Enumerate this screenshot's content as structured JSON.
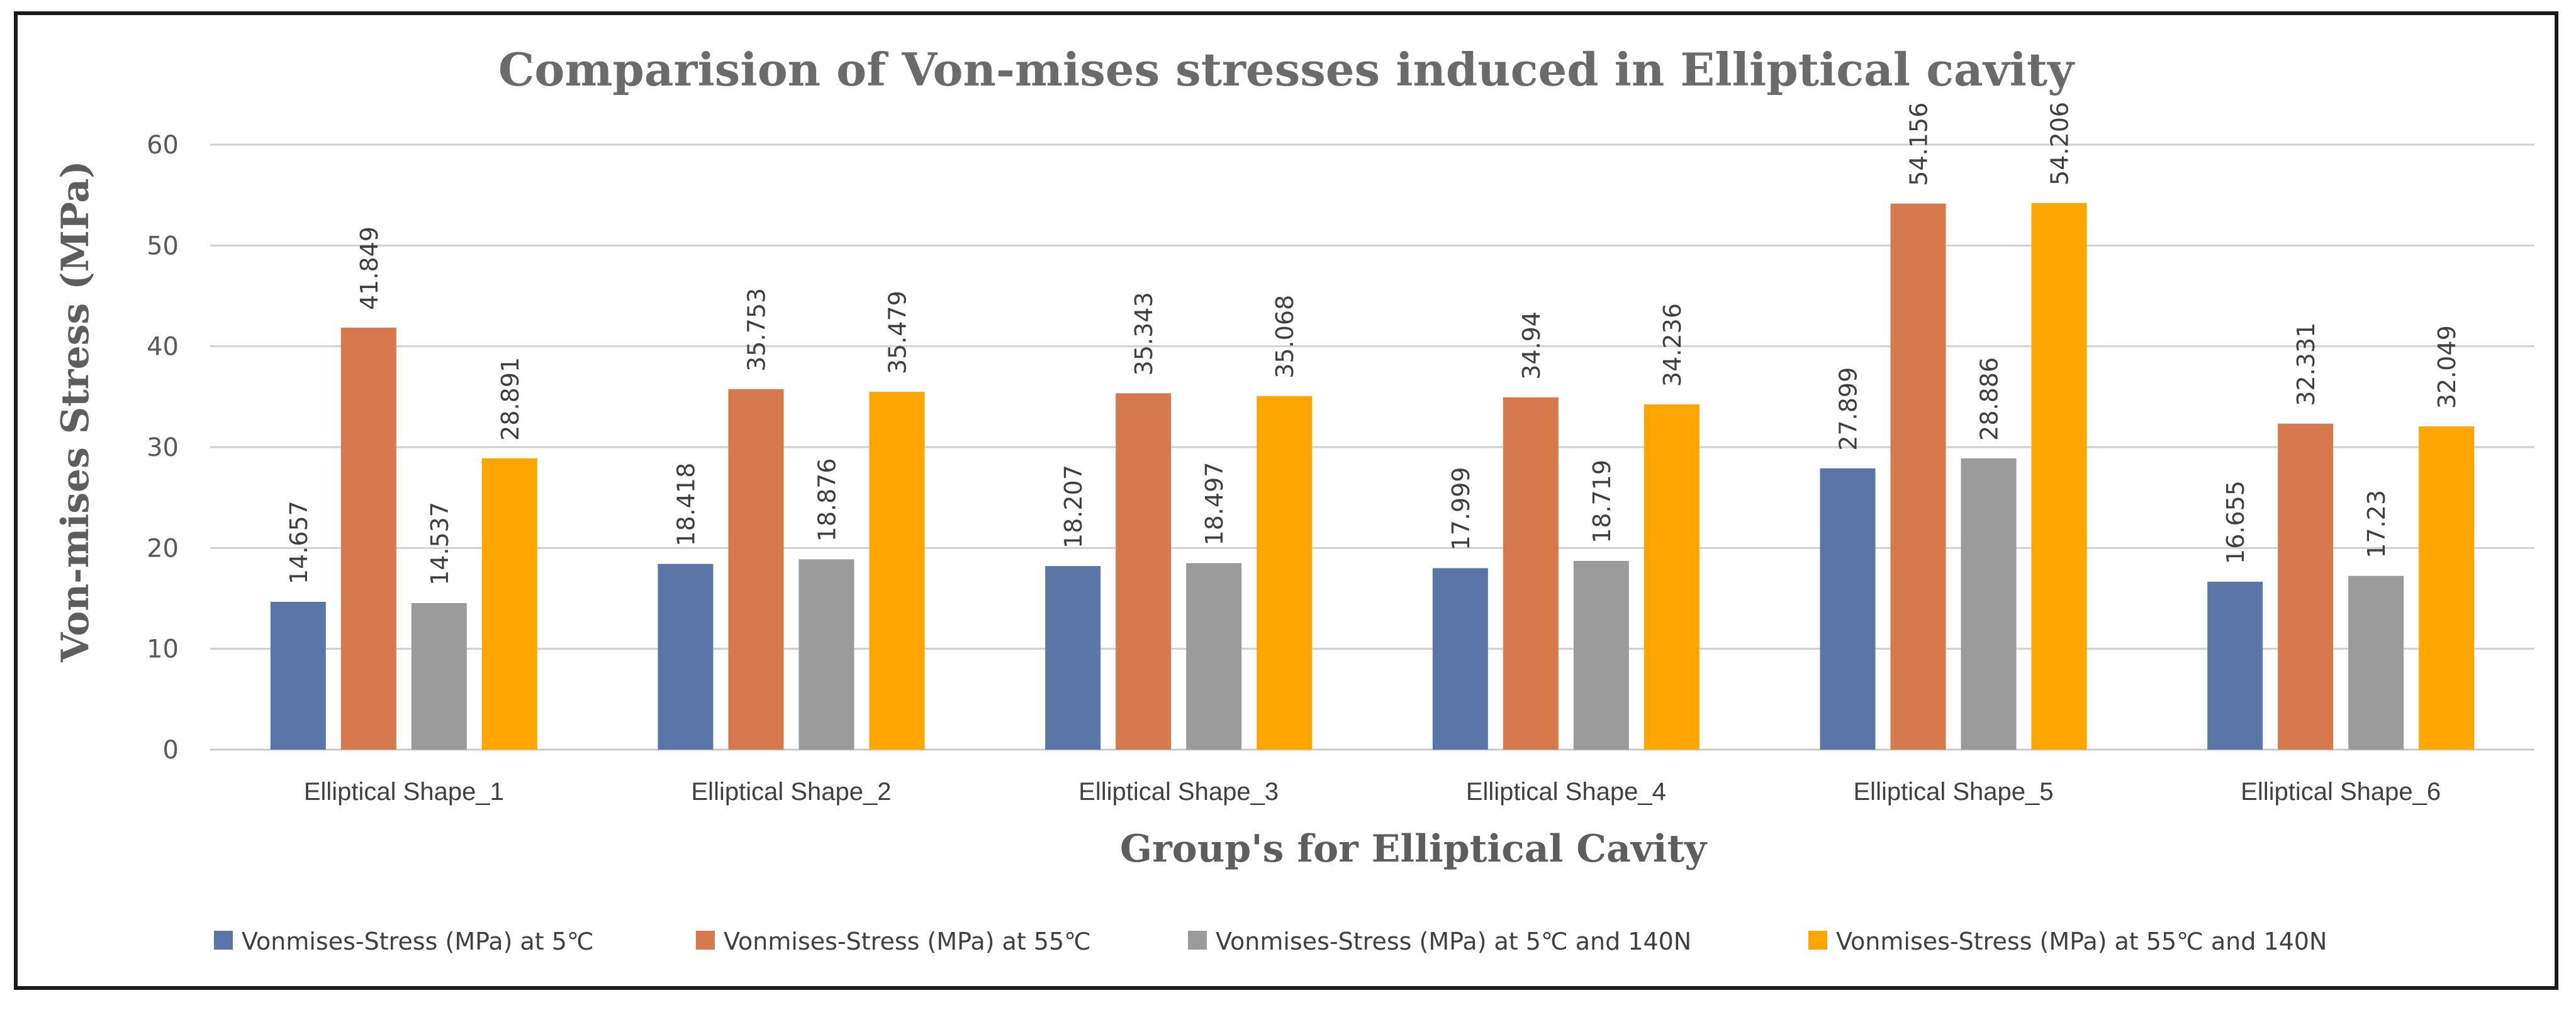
{
  "chart_data": {
    "type": "bar",
    "title": "Comparision of Von-mises stresses induced in Elliptical cavity",
    "xlabel": "Group's for Elliptical Cavity",
    "ylabel": "Von-mises Stress (MPa)",
    "ylim": [
      0,
      60
    ],
    "yticks": [
      "0",
      "10",
      "20",
      "30",
      "40",
      "50",
      "60"
    ],
    "grid": true,
    "legend_position": "bottom",
    "categories": [
      "Elliptical Shape_1",
      "Elliptical Shape_2",
      "Elliptical Shape_3",
      "Elliptical Shape_4",
      "Elliptical Shape_5",
      "Elliptical Shape_6"
    ],
    "series": [
      {
        "name": "Vonmises-Stress (MPa) at 5℃",
        "color": "#5a75a8",
        "values": [
          14.657,
          18.418,
          18.207,
          17.999,
          27.899,
          16.655
        ],
        "labels": [
          "14.657",
          "18.418",
          "18.207",
          "17.999",
          "27.899",
          "16.655"
        ]
      },
      {
        "name": "Vonmises-Stress (MPa) at 55℃",
        "color": "#d67a4d",
        "values": [
          41.849,
          35.753,
          35.343,
          34.94,
          54.156,
          32.331
        ],
        "labels": [
          "41.849",
          "35.753",
          "35.343",
          "34.94",
          "54.156",
          "32.331"
        ]
      },
      {
        "name": "Vonmises-Stress (MPa) at 5℃ and 140N",
        "color": "#9b9b9b",
        "values": [
          14.537,
          18.876,
          18.497,
          18.719,
          28.886,
          17.23
        ],
        "labels": [
          "14.537",
          "18.876",
          "18.497",
          "18.719",
          "28.886",
          "17.23"
        ]
      },
      {
        "name": "Vonmises-Stress (MPa) at 55℃ and 140N",
        "color": "#ffa500",
        "values": [
          28.891,
          35.479,
          35.068,
          34.236,
          54.206,
          32.049
        ],
        "labels": [
          "28.891",
          "35.479",
          "35.068",
          "34.236",
          "54.206",
          "32.049"
        ]
      }
    ]
  }
}
